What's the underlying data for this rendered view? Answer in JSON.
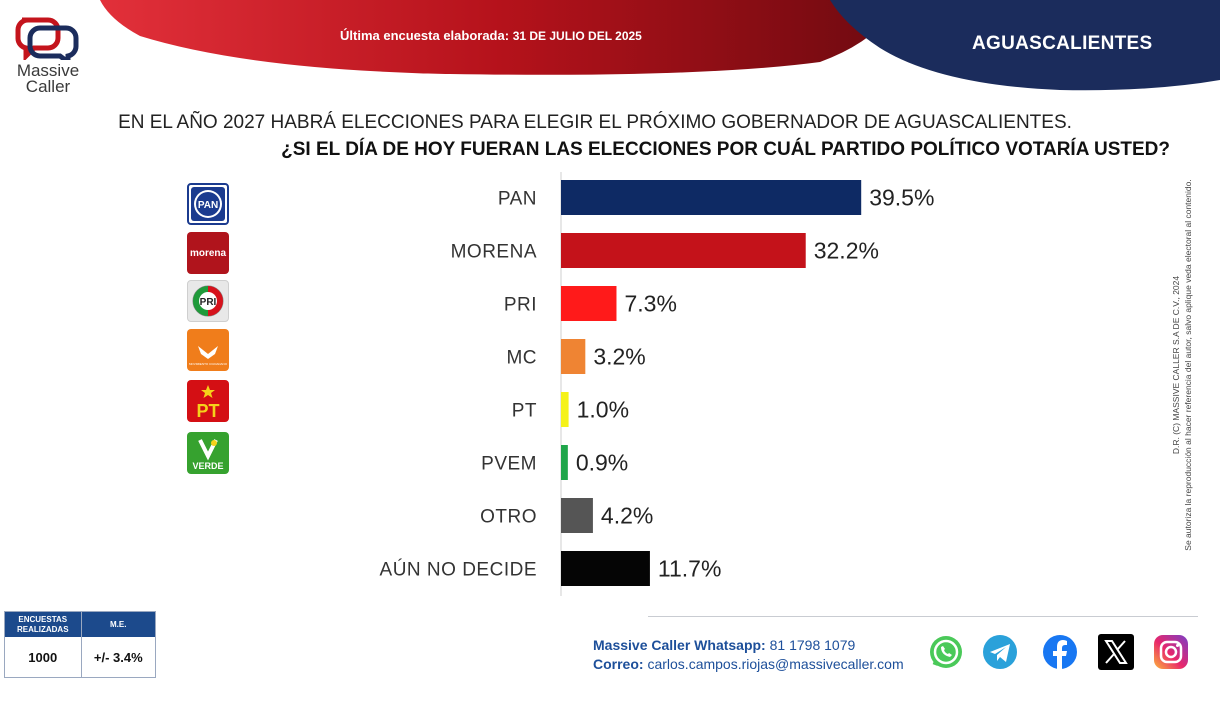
{
  "brand": {
    "name_line1": "Massive",
    "name_line2": "Caller"
  },
  "header": {
    "survey_prefix": "Última encuesta elaborada:",
    "survey_date": "31 DE JULIO DEL 2025",
    "state": "AGUASCALIENTES"
  },
  "question": {
    "line1": "EN EL AÑO 2027 HABRÁ ELECCIONES PARA ELEGIR EL PRÓXIMO GOBERNADOR DE AGUASCALIENTES.",
    "line2": "¿SI EL DÍA DE HOY FUERAN LAS ELECCIONES POR CUÁL PARTIDO POLÍTICO VOTARÍA USTED?"
  },
  "party_logos": [
    {
      "icon": "pan-logo",
      "text": "PAN",
      "color": "#1b3b8f"
    },
    {
      "icon": "morena-logo",
      "text": "morena",
      "color": "#b0141c"
    },
    {
      "icon": "pri-logo",
      "text": "PRI",
      "color": "#d6121c"
    },
    {
      "icon": "mc-logo",
      "text": "MOVIMIENTO CIUDADANO",
      "color": "#f07d1b"
    },
    {
      "icon": "pt-logo",
      "text": "PT",
      "color": "#d40f14"
    },
    {
      "icon": "pvem-logo",
      "text": "VERDE",
      "color": "#36a22f"
    }
  ],
  "chart_data": {
    "type": "bar",
    "orientation": "horizontal",
    "categories": [
      "PAN",
      "MORENA",
      "PRI",
      "MC",
      "PT",
      "PVEM",
      "OTRO",
      "AÚN NO DECIDE"
    ],
    "values": [
      39.5,
      32.2,
      7.3,
      3.2,
      1.0,
      0.9,
      4.2,
      11.7
    ],
    "value_labels": [
      "39.5%",
      "32.2%",
      "7.3%",
      "3.2%",
      "1.0%",
      "0.9%",
      "4.2%",
      "11.7%"
    ],
    "colors": [
      "#0e2a64",
      "#c4121a",
      "#ff1a1a",
      "#ef8433",
      "#f5f21a",
      "#1fa64a",
      "#555555",
      "#050505"
    ],
    "xlim": [
      0,
      60
    ]
  },
  "copyright": {
    "line1": "D.R. (C) MASSIVE CALLER S.A DE C.V., 2024",
    "line2": "Se autoriza la reproducción al hacer referencia del autor, salvo aplique veda electoral al contenido."
  },
  "stats": {
    "col1_header_line1": "ENCUESTAS",
    "col1_header_line2": "REALIZADAS",
    "col2_header": "M.E.",
    "surveys": "1000",
    "margin": "+/- 3.4%"
  },
  "contact": {
    "whatsapp_label": "Massive Caller Whatsapp:",
    "whatsapp_number": "81 1798 1079",
    "email_label": "Correo:",
    "email": "carlos.campos.riojas@massivecaller.com"
  },
  "social": [
    "whatsapp-icon",
    "telegram-icon",
    "facebook-icon",
    "x-icon",
    "instagram-icon"
  ],
  "colors": {
    "banner_red": "#b5121b",
    "banner_navy": "#1b2c5c",
    "accent_blue": "#1d4f9a"
  }
}
